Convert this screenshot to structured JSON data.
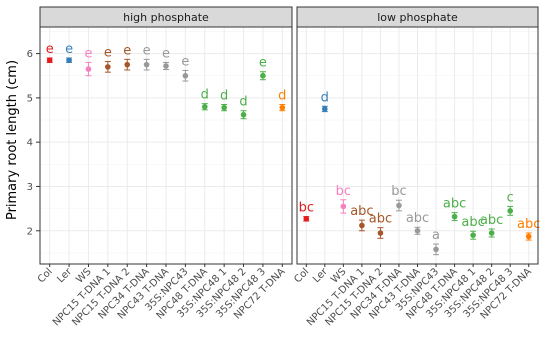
{
  "chart_data": {
    "type": "scatter",
    "ylabel": "Primary root length (cm)",
    "xlabel": "",
    "ylim": [
      1.25,
      6.6
    ],
    "yticks": [
      2,
      3,
      4,
      5,
      6
    ],
    "grid": true,
    "legend": "none",
    "categories": [
      "Col",
      "Ler",
      "WS",
      "NPC15 T-DNA 1",
      "NPC15 T-DNA 2",
      "NPC34 T-DNA",
      "NPC43 T-DNA",
      "35S:NPC43",
      "NPC48 T-DNA",
      "35S:NPC48 1",
      "35S:NPC48 2",
      "35S:NPC48 3",
      "NPC72 T-DNA"
    ],
    "colors": [
      "#e41a1c",
      "#377eb8",
      "#f781bf",
      "#a65628",
      "#a65628",
      "#999999",
      "#999999",
      "#999999",
      "#4daf4a",
      "#4daf4a",
      "#4daf4a",
      "#4daf4a",
      "#ff7f00"
    ],
    "panels": [
      {
        "title": "high phosphate",
        "means": [
          5.85,
          5.85,
          5.65,
          5.7,
          5.75,
          5.75,
          5.72,
          5.5,
          4.8,
          4.78,
          4.62,
          5.5,
          4.78
        ],
        "errors": [
          0.05,
          0.05,
          0.15,
          0.12,
          0.12,
          0.12,
          0.08,
          0.12,
          0.07,
          0.07,
          0.09,
          0.09,
          0.07
        ],
        "labels": [
          "e",
          "e",
          "e",
          "e",
          "e",
          "e",
          "e",
          "e",
          "d",
          "d",
          "d",
          "e",
          "d"
        ]
      },
      {
        "title": "low phosphate",
        "means": [
          2.27,
          4.75,
          2.55,
          2.12,
          1.95,
          2.57,
          2.0,
          1.58,
          2.32,
          1.9,
          1.95,
          2.45,
          1.87
        ],
        "errors": [
          0.05,
          0.06,
          0.15,
          0.12,
          0.12,
          0.12,
          0.08,
          0.12,
          0.09,
          0.09,
          0.09,
          0.1,
          0.08
        ],
        "labels": [
          "bc",
          "d",
          "bc",
          "abc",
          "abc",
          "bc",
          "abc",
          "a",
          "abc",
          "abc",
          "abc",
          "c",
          "abc"
        ]
      }
    ]
  }
}
